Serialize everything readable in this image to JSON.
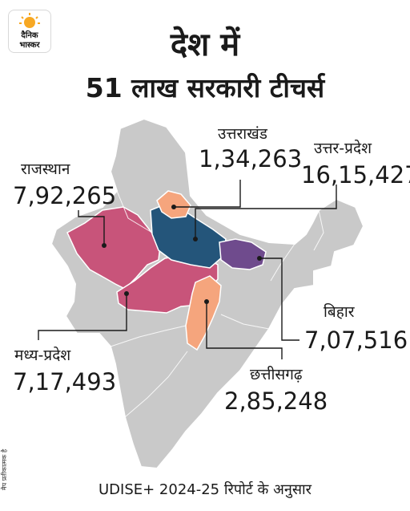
{
  "branding": {
    "logo_line1": "दैनिक",
    "logo_line2": "भास्कर",
    "logo_icon": "sun-logo"
  },
  "header": {
    "title_line1": "देश में",
    "title_line2": "51 लाख सरकारी टीचर्स"
  },
  "states": {
    "uttarakhand": {
      "name": "उत्तराखंड",
      "teachers": "1,34,263",
      "color": "#f5a57d"
    },
    "uttar_pradesh": {
      "name": "उत्तर-प्रदेश",
      "teachers": "16,15,427",
      "color": "#24557a"
    },
    "rajasthan": {
      "name": "राजस्थान",
      "teachers": "7,92,265",
      "color": "#c8547a"
    },
    "madhya_pradesh": {
      "name": "मध्य-प्रदेश",
      "teachers": "7,17,493",
      "color": "#c8547a"
    },
    "bihar": {
      "name": "बिहार",
      "teachers": "7,07,516",
      "color": "#6f4b8d"
    },
    "chhattisgarh": {
      "name": "छत्तीसगढ़",
      "teachers": "2,85,248",
      "color": "#f5a57d"
    }
  },
  "colors": {
    "base_map": "#c9c9c9",
    "state_border": "#ffffff",
    "leader_line": "#1a1a1a"
  },
  "footer": {
    "source": "UDISE+ 2024-25 रिपोर्ट के अनुसार",
    "side_note": "मैप प्रतीकात्मक है"
  }
}
